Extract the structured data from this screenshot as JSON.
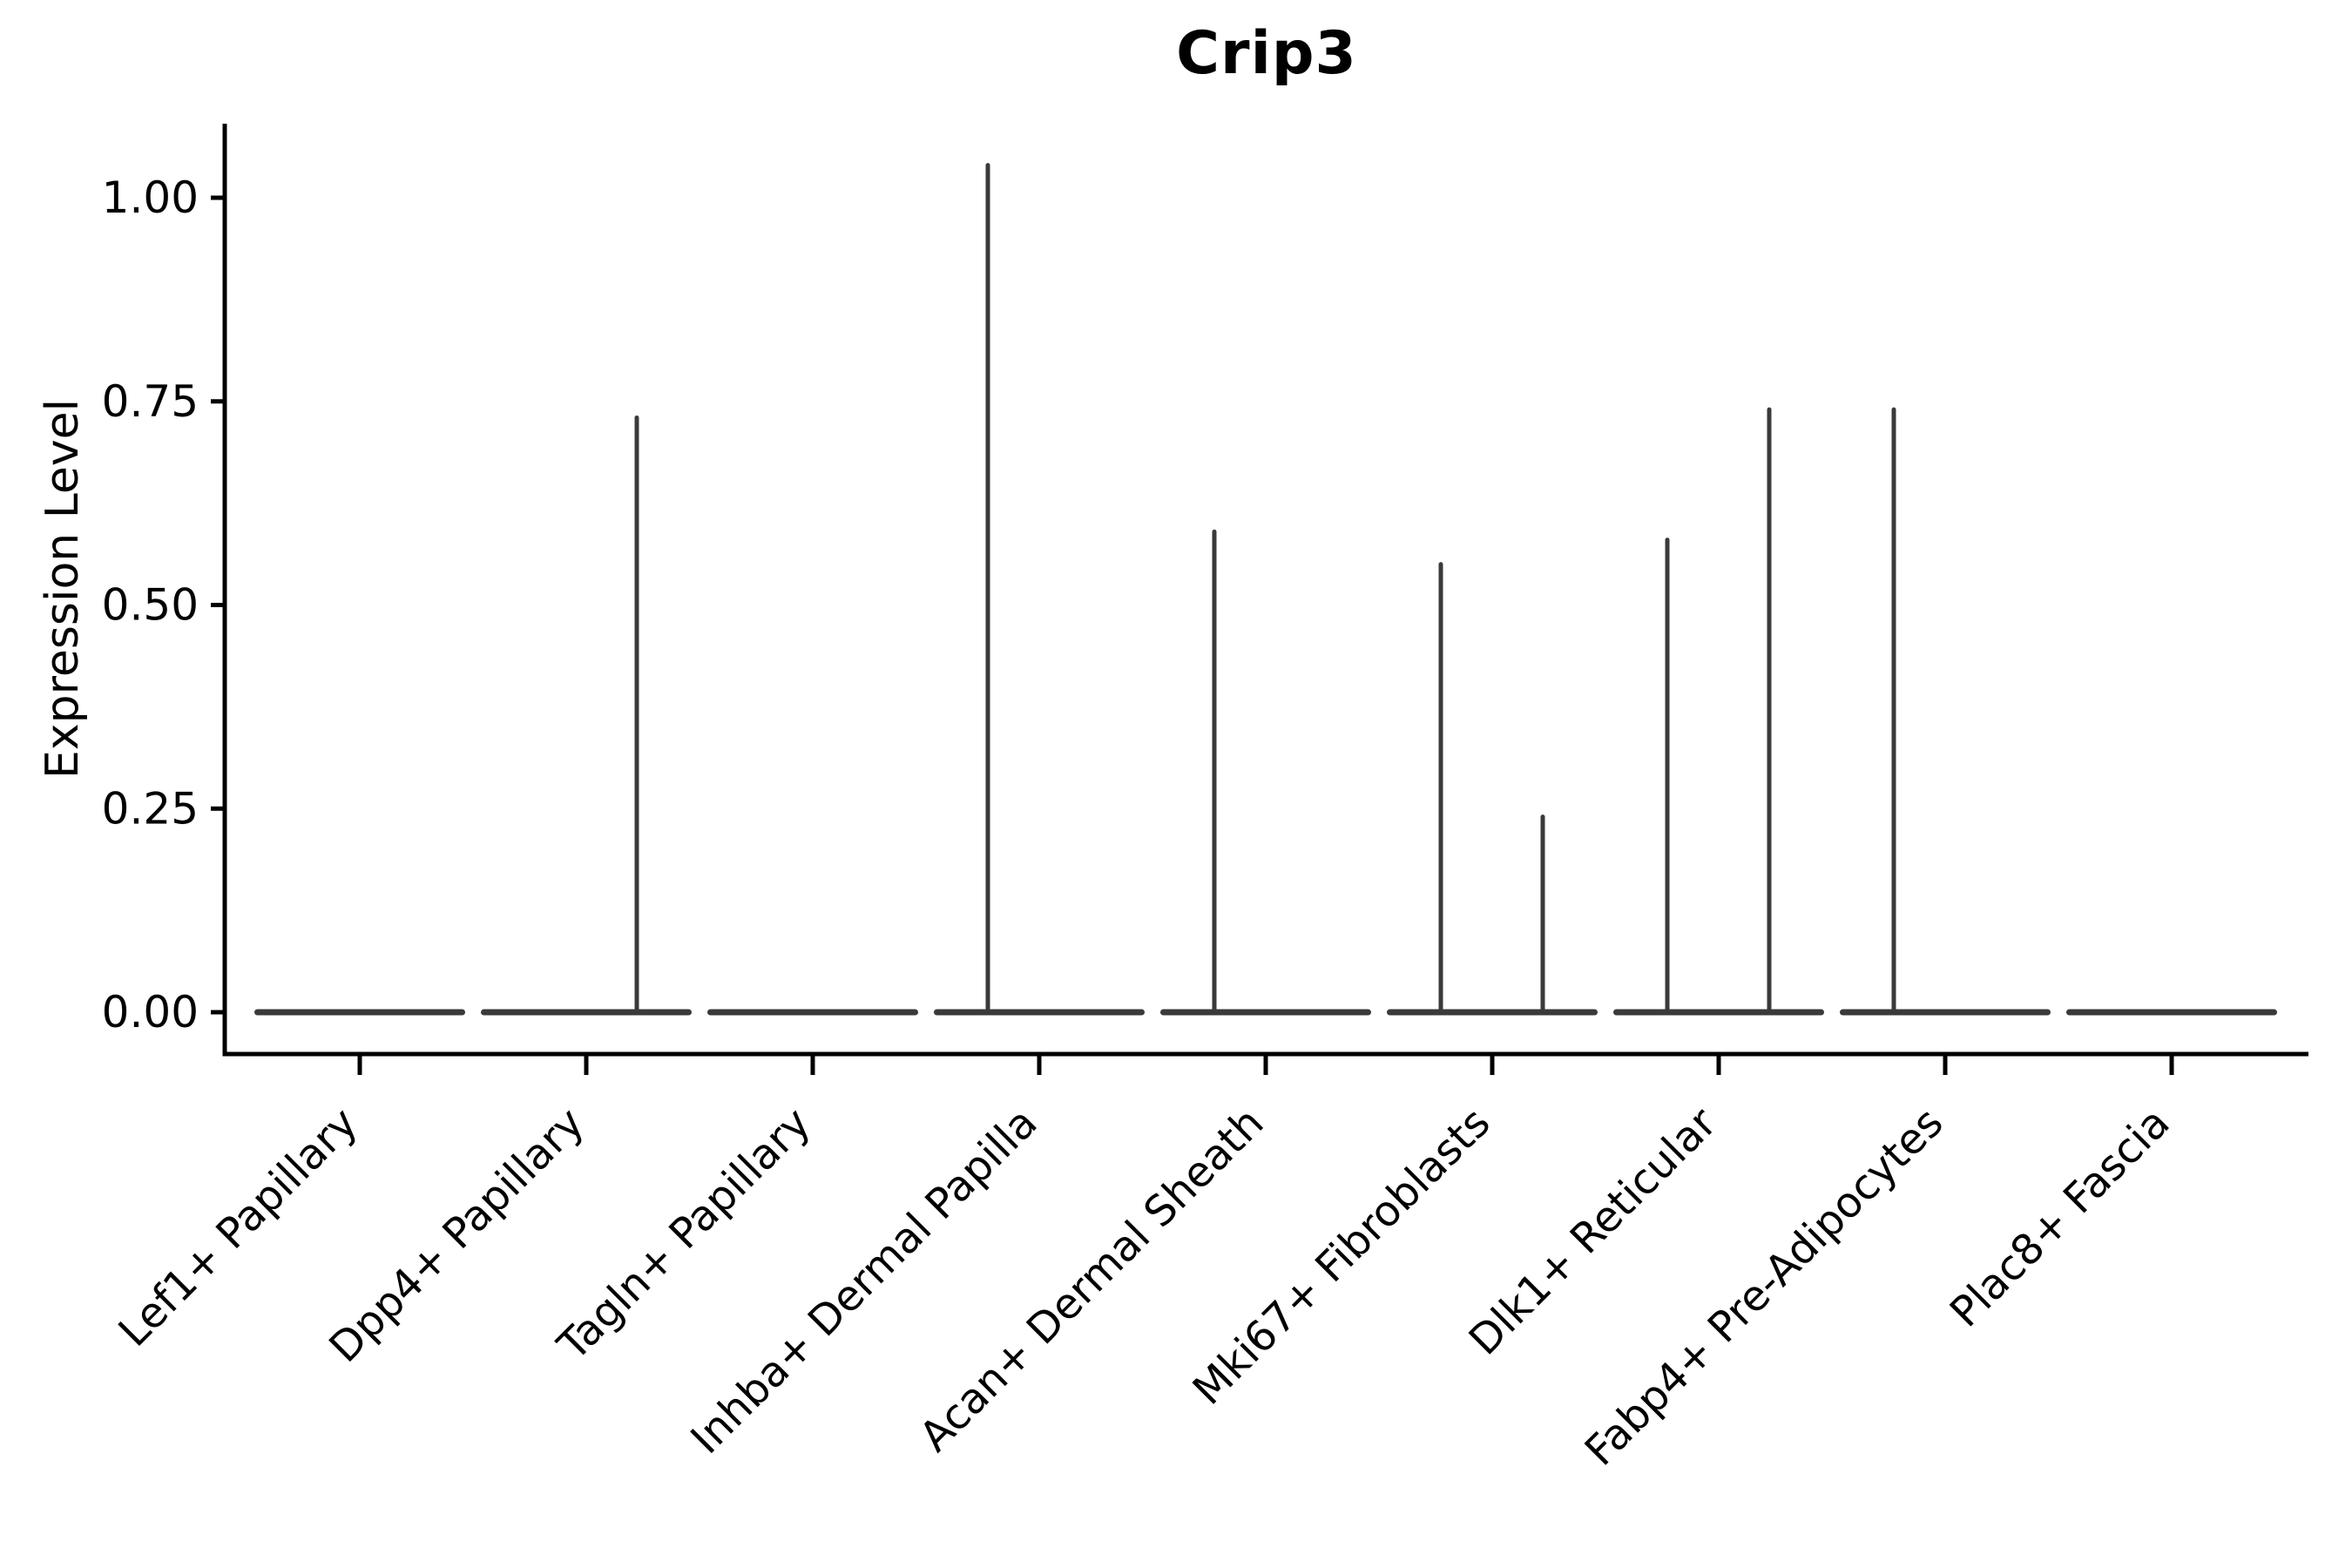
{
  "chart_data": {
    "type": "violin",
    "title": "Crip3",
    "ylabel": "Expression Level",
    "xlabel": "",
    "ylim": [
      0,
      1.09
    ],
    "yticks": {
      "values": [
        0,
        0.25,
        0.5,
        0.75,
        1.0
      ],
      "labels": [
        "0.00",
        "0.25",
        "0.50",
        "0.75",
        "1.00"
      ]
    },
    "grid": false,
    "legend": "none",
    "colors": {
      "axis": "#000000",
      "text": "#000000",
      "violin_outline": "#3a3a3a",
      "background": "#ffffff"
    },
    "categories": [
      {
        "label": "Lef1+ Papillary",
        "spikes": []
      },
      {
        "label": "Dpp4+ Papillary",
        "spikes": [
          {
            "side": "right",
            "max": 0.73
          }
        ]
      },
      {
        "label": "Tagln+ Papillary",
        "spikes": []
      },
      {
        "label": "Inhba+ Dermal Papilla",
        "spikes": [
          {
            "side": "left",
            "max": 1.04
          }
        ]
      },
      {
        "label": "Acan+ Dermal Sheath",
        "spikes": [
          {
            "side": "left",
            "max": 0.59
          }
        ]
      },
      {
        "label": "Mki67+ Fibroblasts",
        "spikes": [
          {
            "side": "left",
            "max": 0.55
          },
          {
            "side": "right",
            "max": 0.24
          }
        ]
      },
      {
        "label": "Dlk1+ Reticular",
        "spikes": [
          {
            "side": "left",
            "max": 0.58
          },
          {
            "side": "right",
            "max": 0.74
          }
        ]
      },
      {
        "label": "Fabp4+ Pre-Adipocytes",
        "spikes": [
          {
            "side": "left",
            "max": 0.74
          }
        ]
      },
      {
        "label": "Plac8+ Fascia",
        "spikes": []
      }
    ]
  }
}
